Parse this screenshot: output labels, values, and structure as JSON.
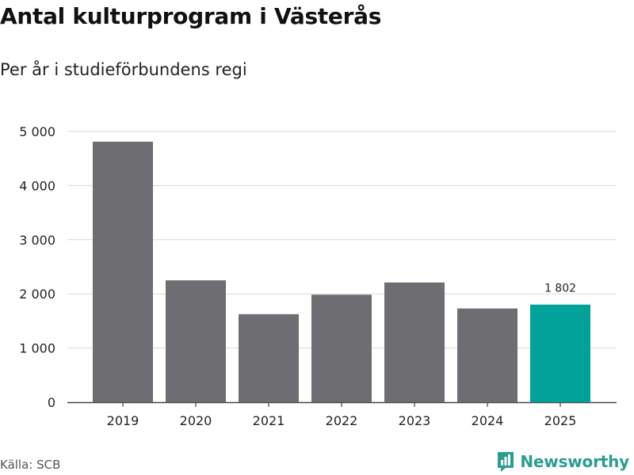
{
  "title": "Antal kulturprogram i Västerås",
  "subtitle": "Per år i studieförbundens regi",
  "source": "Källa: SCB",
  "brand": "Newsworthy",
  "colors": {
    "bar": "#6d6d72",
    "highlight": "#00a29a",
    "grid": "#d9d9d9",
    "brand": "#2a9d8f"
  },
  "chart_data": {
    "type": "bar",
    "categories": [
      "2019",
      "2020",
      "2021",
      "2022",
      "2023",
      "2024",
      "2025"
    ],
    "values": [
      4810,
      2250,
      1625,
      1985,
      2210,
      1730,
      1802
    ],
    "ylim": [
      0,
      5000
    ],
    "yticks": [
      0,
      1000,
      2000,
      3000,
      4000,
      5000
    ],
    "ytick_labels": [
      "0",
      "1 000",
      "2 000",
      "3 000",
      "4 000",
      "5 000"
    ],
    "highlight_index": 6,
    "data_labels": [
      {
        "index": 6,
        "text": "1 802"
      }
    ],
    "grid": true,
    "legend": "none"
  }
}
